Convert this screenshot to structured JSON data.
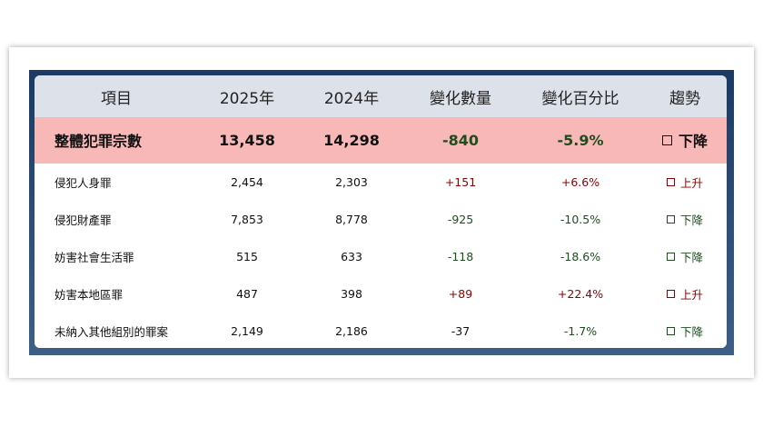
{
  "table": {
    "headers": [
      "項目",
      "2025年",
      "2024年",
      "變化數量",
      "變化百分比",
      "趨勢"
    ],
    "summary": {
      "item": "整體犯罪宗數",
      "y2025": "13,458",
      "y2024": "14,298",
      "change": "-840",
      "pct": "-5.9%",
      "trend": "下降"
    },
    "rows": [
      {
        "item": "侵犯人身罪",
        "y2025": "2,454",
        "y2024": "2,303",
        "change": "+151",
        "pct": "+6.6%",
        "trend": "上升"
      },
      {
        "item": "侵犯財產罪",
        "y2025": "7,853",
        "y2024": "8,778",
        "change": "-925",
        "pct": "-10.5%",
        "trend": "下降"
      },
      {
        "item": "妨害社會生活罪",
        "y2025": "515",
        "y2024": "633",
        "change": "-118",
        "pct": "-18.6%",
        "trend": "下降"
      },
      {
        "item": "妨害本地區罪",
        "y2025": "487",
        "y2024": "398",
        "change": "+89",
        "pct": "+22.4%",
        "trend": "上升"
      },
      {
        "item": "未納入其他組別的罪案",
        "y2025": "2,149",
        "y2024": "2,186",
        "change": "-37",
        "pct": "-1.7%",
        "trend": "下降"
      }
    ]
  },
  "colors": {
    "up": "#8b0000",
    "down": "#1e4d1e",
    "summary_bg": "#f8b8b8",
    "header_bg": "#dde1e9",
    "panel_top": "#1b3a63"
  }
}
